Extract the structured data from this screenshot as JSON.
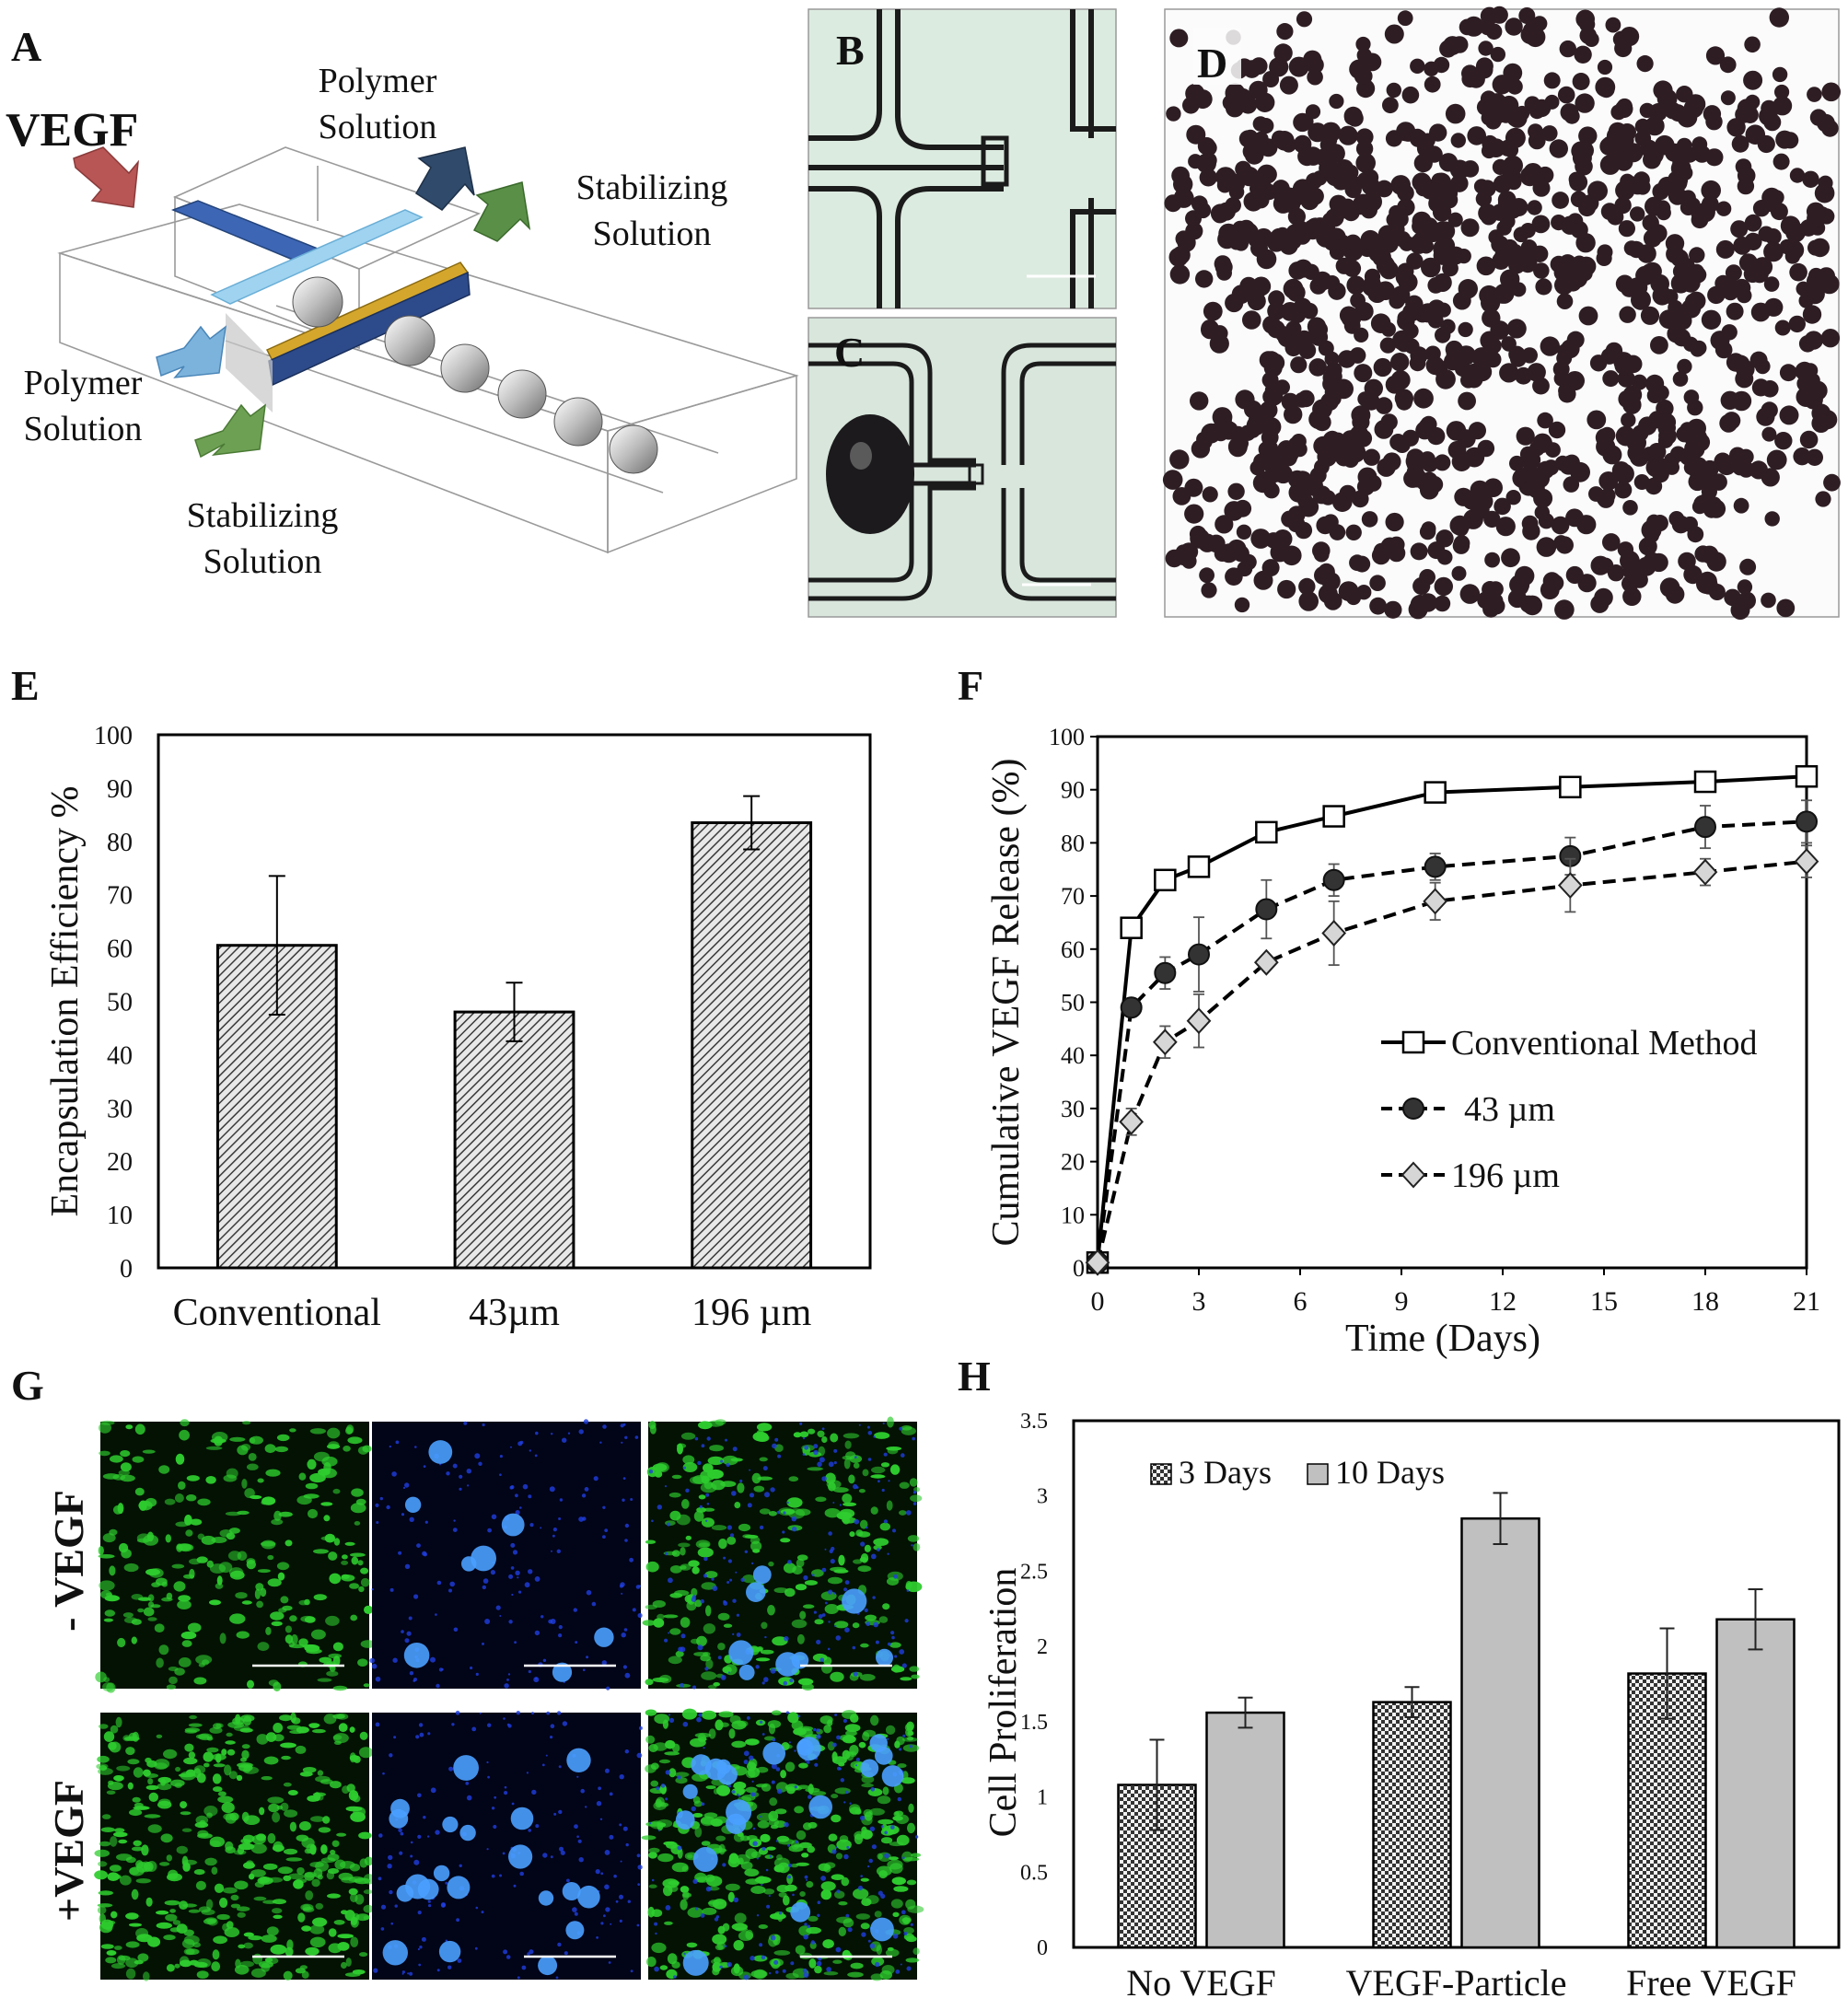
{
  "panels": {
    "A": {
      "letter": "A",
      "vegf_label": "VEGF",
      "polymer_top_1": "Polymer",
      "polymer_top_2": "Solution",
      "stabilizing_top_1": "Stabilizing",
      "stabilizing_top_2": "Solution",
      "polymer_left_1": "Polymer",
      "polymer_left_2": "Solution",
      "stabilizing_bottom_1": "Stabilizing",
      "stabilizing_bottom_2": "Solution"
    },
    "B": {
      "letter": "B"
    },
    "C": {
      "letter": "C"
    },
    "D": {
      "letter": "D"
    },
    "G": {
      "letter": "G",
      "row_minus": "- VEGF",
      "row_plus": "+VEGF"
    }
  },
  "colors": {
    "green_fluorescence": "#2ecc2e",
    "blue_fluorescence": "#1f3fe0",
    "particle": "#2e1e24",
    "light_grey_bar": "#c0c0c0"
  },
  "chart_data": [
    {
      "panel": "E",
      "type": "bar",
      "ylabel": "Encapsulation Efficiency %",
      "categories": [
        "Conventional",
        "43µm",
        "196 µm"
      ],
      "values": [
        60.5,
        48,
        83.5
      ],
      "errors": [
        13,
        5.5,
        5
      ],
      "ylim": [
        0,
        100
      ],
      "yticks": [
        0,
        10,
        20,
        30,
        40,
        50,
        60,
        70,
        80,
        90,
        100
      ],
      "fill": "hatched"
    },
    {
      "panel": "F",
      "type": "line",
      "xlabel": "Time (Days)",
      "ylabel": "Cumulative VEGF Release (%)",
      "xlim": [
        0,
        21
      ],
      "ylim": [
        0,
        100
      ],
      "xticks": [
        0,
        3,
        6,
        9,
        12,
        15,
        18,
        21
      ],
      "yticks": [
        0,
        10,
        20,
        30,
        40,
        50,
        60,
        70,
        80,
        90,
        100
      ],
      "legend_position": "center-right",
      "series": [
        {
          "name": "Conventional Method",
          "marker": "square",
          "line": "solid",
          "x": [
            0,
            1,
            2,
            3,
            5,
            7,
            10,
            14,
            18,
            21
          ],
          "y": [
            1,
            64,
            73,
            75.5,
            82,
            85,
            89.5,
            90.5,
            91.5,
            92.5
          ],
          "err": [
            0,
            0,
            0,
            0,
            0,
            0,
            0,
            0,
            0,
            0
          ]
        },
        {
          "name": "43 µm",
          "marker": "circle",
          "line": "dashed",
          "x": [
            0,
            1,
            2,
            3,
            5,
            7,
            10,
            14,
            18,
            21
          ],
          "y": [
            1,
            49,
            55.5,
            59,
            67.5,
            73,
            75.5,
            77.5,
            83,
            84
          ],
          "err": [
            0,
            0,
            3,
            7,
            5.5,
            3,
            2.5,
            3.5,
            4,
            4
          ]
        },
        {
          "name": "196 µm",
          "marker": "diamond",
          "line": "dashed",
          "x": [
            0,
            1,
            2,
            3,
            5,
            7,
            10,
            14,
            18,
            21
          ],
          "y": [
            1,
            27.5,
            42.5,
            46.5,
            57.5,
            63,
            69,
            72,
            74.5,
            76.5
          ],
          "err": [
            0,
            2.5,
            3,
            5,
            0,
            6,
            3.5,
            5,
            2.5,
            3
          ]
        }
      ]
    },
    {
      "panel": "H",
      "type": "bar",
      "ylabel": "Cell Proliferation",
      "categories": [
        "No VEGF",
        "VEGF-Particle",
        "Free VEGF"
      ],
      "ylim": [
        0,
        3.5
      ],
      "yticks": [
        0,
        0.5,
        1,
        1.5,
        2,
        2.5,
        3,
        3.5
      ],
      "ytick_labels": [
        "0",
        "0.5",
        "1",
        "1.5",
        "2",
        "2.5",
        "3",
        "3.5"
      ],
      "legend_position": "top-left",
      "series": [
        {
          "name": "3 Days",
          "fill": "checker",
          "values": [
            1.08,
            1.63,
            1.82
          ],
          "errors": [
            0.3,
            0.1,
            0.3
          ]
        },
        {
          "name": "10 Days",
          "fill": "grey",
          "values": [
            1.56,
            2.85,
            2.18
          ],
          "errors": [
            0.1,
            0.17,
            0.2
          ]
        }
      ]
    }
  ]
}
